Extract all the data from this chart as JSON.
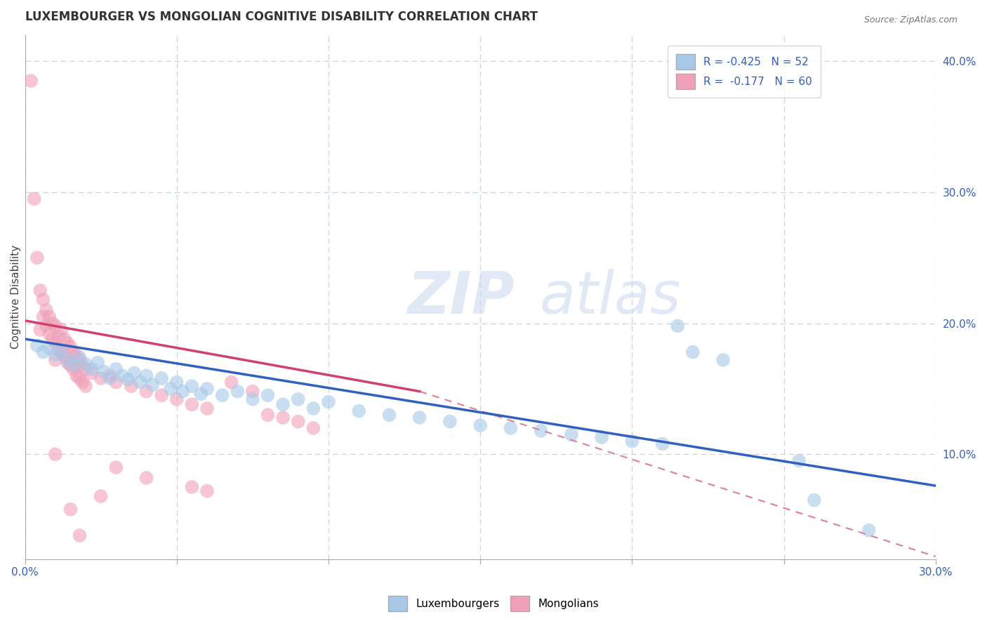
{
  "title": "LUXEMBOURGER VS MONGOLIAN COGNITIVE DISABILITY CORRELATION CHART",
  "source": "Source: ZipAtlas.com",
  "ylabel": "Cognitive Disability",
  "xlim": [
    0.0,
    0.3
  ],
  "ylim": [
    0.02,
    0.42
  ],
  "xticks": [
    0.0,
    0.05,
    0.1,
    0.15,
    0.2,
    0.25,
    0.3
  ],
  "yticks_right": [
    0.1,
    0.2,
    0.3,
    0.4
  ],
  "ytick_labels_right": [
    "10.0%",
    "20.0%",
    "30.0%",
    "40.0%"
  ],
  "legend_r1": "R = -0.425",
  "legend_n1": "N = 52",
  "legend_r2": "R = -0.177",
  "legend_n2": "N = 60",
  "blue_color": "#a8c8e8",
  "pink_color": "#f0a0b8",
  "blue_line_color": "#3060c0",
  "pink_line_color": "#d04070",
  "dashed_line_color": "#e08090",
  "background_color": "#ffffff",
  "grid_color": "#c8d4e0",
  "blue_scatter": [
    [
      0.004,
      0.183
    ],
    [
      0.006,
      0.178
    ],
    [
      0.008,
      0.181
    ],
    [
      0.01,
      0.176
    ],
    [
      0.012,
      0.179
    ],
    [
      0.014,
      0.172
    ],
    [
      0.016,
      0.168
    ],
    [
      0.018,
      0.174
    ],
    [
      0.02,
      0.169
    ],
    [
      0.022,
      0.165
    ],
    [
      0.024,
      0.17
    ],
    [
      0.026,
      0.163
    ],
    [
      0.028,
      0.158
    ],
    [
      0.03,
      0.165
    ],
    [
      0.032,
      0.16
    ],
    [
      0.034,
      0.157
    ],
    [
      0.036,
      0.162
    ],
    [
      0.038,
      0.155
    ],
    [
      0.04,
      0.16
    ],
    [
      0.042,
      0.153
    ],
    [
      0.045,
      0.158
    ],
    [
      0.048,
      0.15
    ],
    [
      0.05,
      0.155
    ],
    [
      0.052,
      0.148
    ],
    [
      0.055,
      0.152
    ],
    [
      0.058,
      0.146
    ],
    [
      0.06,
      0.15
    ],
    [
      0.065,
      0.145
    ],
    [
      0.07,
      0.148
    ],
    [
      0.075,
      0.142
    ],
    [
      0.08,
      0.145
    ],
    [
      0.085,
      0.138
    ],
    [
      0.09,
      0.142
    ],
    [
      0.095,
      0.135
    ],
    [
      0.1,
      0.14
    ],
    [
      0.11,
      0.133
    ],
    [
      0.12,
      0.13
    ],
    [
      0.13,
      0.128
    ],
    [
      0.14,
      0.125
    ],
    [
      0.15,
      0.122
    ],
    [
      0.16,
      0.12
    ],
    [
      0.17,
      0.118
    ],
    [
      0.18,
      0.115
    ],
    [
      0.19,
      0.113
    ],
    [
      0.2,
      0.11
    ],
    [
      0.21,
      0.108
    ],
    [
      0.215,
      0.198
    ],
    [
      0.22,
      0.178
    ],
    [
      0.23,
      0.172
    ],
    [
      0.255,
      0.095
    ],
    [
      0.26,
      0.065
    ],
    [
      0.278,
      0.042
    ]
  ],
  "pink_scatter": [
    [
      0.002,
      0.385
    ],
    [
      0.003,
      0.295
    ],
    [
      0.004,
      0.25
    ],
    [
      0.005,
      0.225
    ],
    [
      0.005,
      0.195
    ],
    [
      0.006,
      0.218
    ],
    [
      0.006,
      0.205
    ],
    [
      0.007,
      0.21
    ],
    [
      0.007,
      0.198
    ],
    [
      0.008,
      0.205
    ],
    [
      0.008,
      0.192
    ],
    [
      0.009,
      0.2
    ],
    [
      0.009,
      0.188
    ],
    [
      0.01,
      0.198
    ],
    [
      0.01,
      0.185
    ],
    [
      0.01,
      0.172
    ],
    [
      0.011,
      0.19
    ],
    [
      0.011,
      0.18
    ],
    [
      0.012,
      0.195
    ],
    [
      0.012,
      0.178
    ],
    [
      0.013,
      0.188
    ],
    [
      0.013,
      0.175
    ],
    [
      0.014,
      0.185
    ],
    [
      0.014,
      0.17
    ],
    [
      0.015,
      0.182
    ],
    [
      0.015,
      0.168
    ],
    [
      0.016,
      0.178
    ],
    [
      0.016,
      0.165
    ],
    [
      0.017,
      0.175
    ],
    [
      0.017,
      0.16
    ],
    [
      0.018,
      0.172
    ],
    [
      0.018,
      0.158
    ],
    [
      0.019,
      0.168
    ],
    [
      0.019,
      0.155
    ],
    [
      0.02,
      0.165
    ],
    [
      0.02,
      0.152
    ],
    [
      0.022,
      0.162
    ],
    [
      0.025,
      0.158
    ],
    [
      0.028,
      0.16
    ],
    [
      0.03,
      0.155
    ],
    [
      0.035,
      0.152
    ],
    [
      0.04,
      0.148
    ],
    [
      0.045,
      0.145
    ],
    [
      0.05,
      0.142
    ],
    [
      0.055,
      0.138
    ],
    [
      0.06,
      0.135
    ],
    [
      0.068,
      0.155
    ],
    [
      0.075,
      0.148
    ],
    [
      0.08,
      0.13
    ],
    [
      0.085,
      0.128
    ],
    [
      0.09,
      0.125
    ],
    [
      0.095,
      0.12
    ],
    [
      0.01,
      0.1
    ],
    [
      0.015,
      0.058
    ],
    [
      0.018,
      0.038
    ],
    [
      0.025,
      0.068
    ],
    [
      0.03,
      0.09
    ],
    [
      0.04,
      0.082
    ],
    [
      0.055,
      0.075
    ],
    [
      0.06,
      0.072
    ]
  ],
  "blue_line": [
    [
      0.0,
      0.188
    ],
    [
      0.3,
      0.076
    ]
  ],
  "pink_line": [
    [
      0.0,
      0.202
    ],
    [
      0.13,
      0.148
    ]
  ],
  "dashed_line": [
    [
      0.13,
      0.148
    ],
    [
      0.3,
      0.022
    ]
  ]
}
